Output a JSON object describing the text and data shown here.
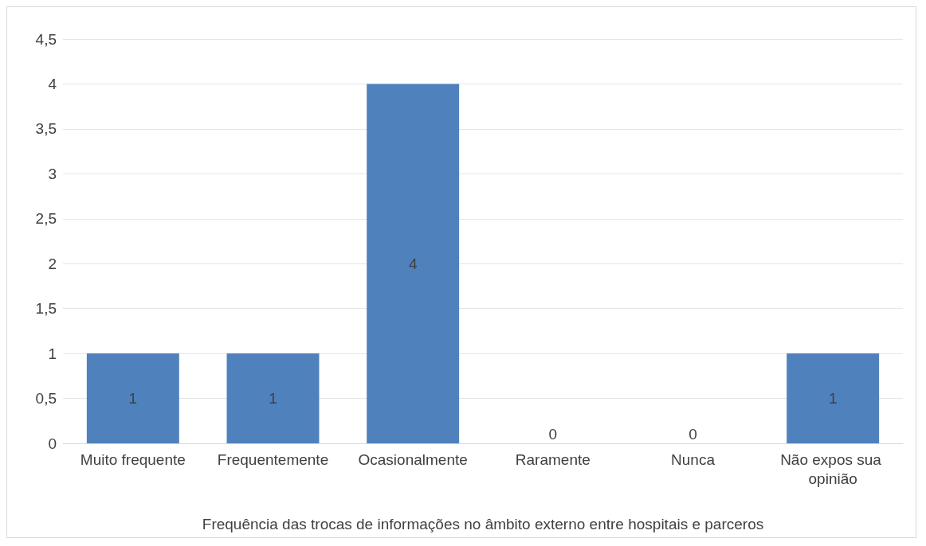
{
  "chart_data": {
    "type": "bar",
    "xlabel": "Frequência das trocas de informações no âmbito externo entre hospitais e parceros",
    "categories": [
      "Muito frequente",
      "Frequentemente",
      "Ocasionalmente",
      "Raramente",
      "Nunca",
      "Não expos sua opinião"
    ],
    "values": [
      1,
      1,
      4,
      0,
      0,
      1
    ],
    "color": "#4f81bd",
    "data_labels": true,
    "ylim": [
      0,
      4.5
    ],
    "yticks": [
      0,
      {
        "value": 0.5,
        "label": "0,5"
      },
      1,
      {
        "value": 1.5,
        "label": "1,5"
      },
      2,
      {
        "value": 2.5,
        "label": "2,5"
      },
      3,
      {
        "value": 3.5,
        "label": "3,5"
      },
      4,
      {
        "value": 4.5,
        "label": "4,5"
      }
    ],
    "grid": "y"
  }
}
